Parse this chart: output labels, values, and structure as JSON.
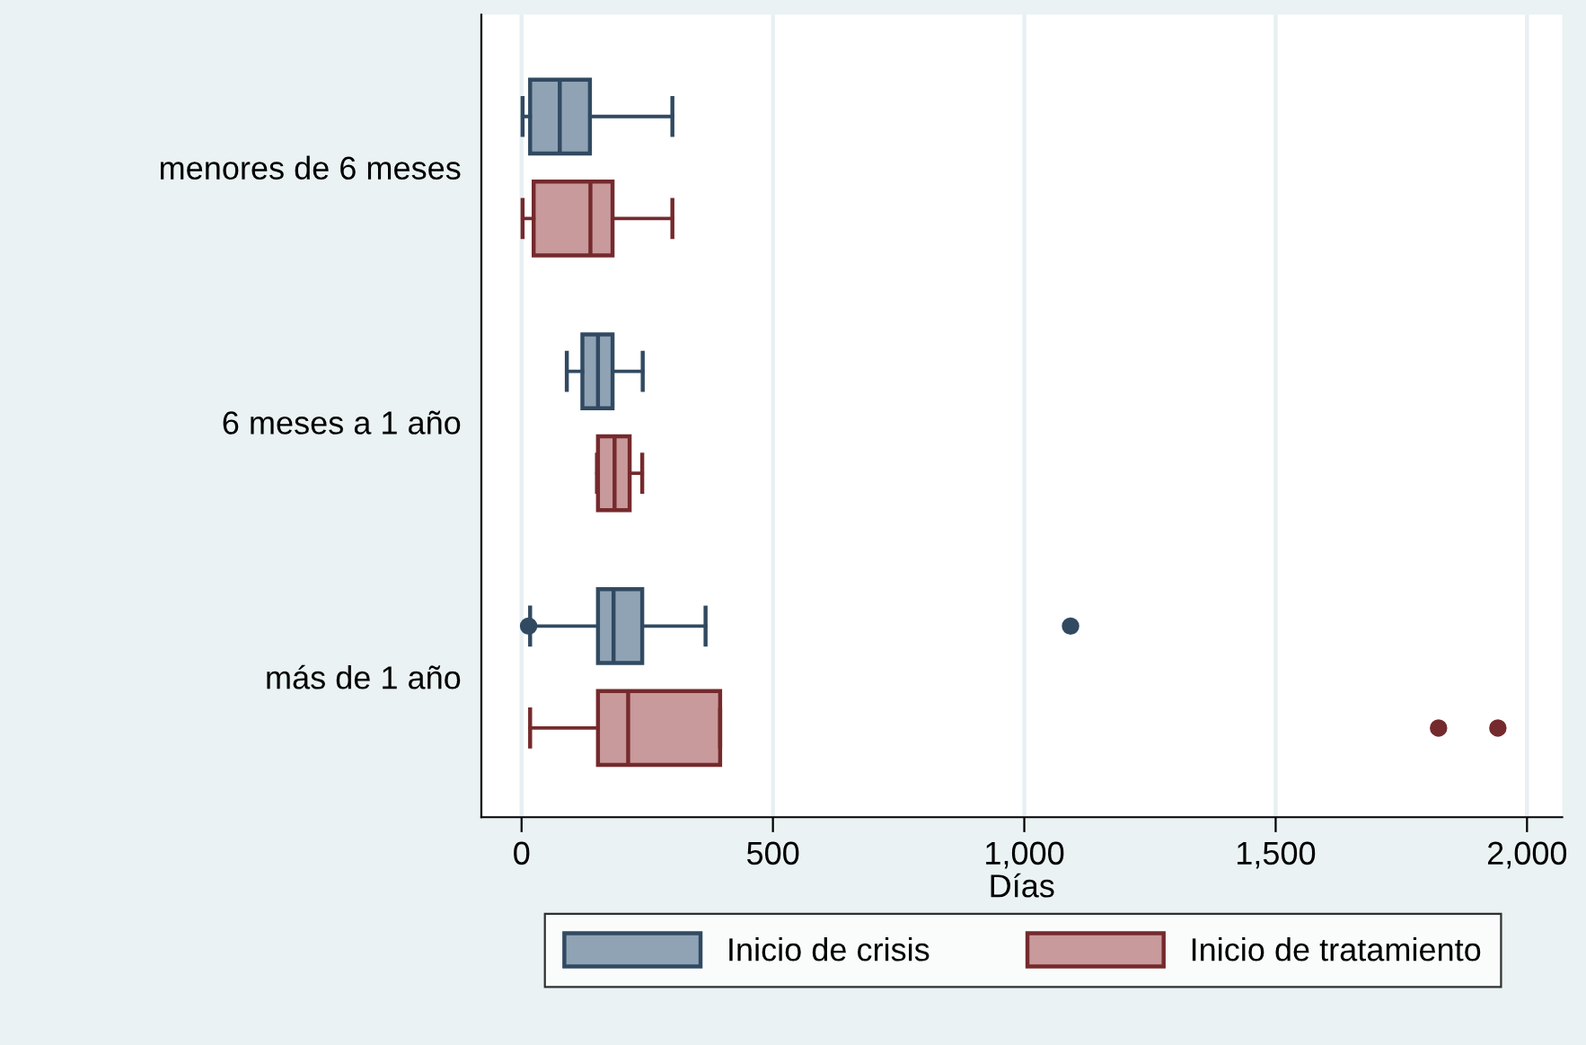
{
  "chart_data": {
    "type": "box",
    "orientation": "horizontal",
    "xlabel": "Días",
    "categories": [
      "menores de 6 meses",
      "6 meses a 1 año",
      "más de 1 año"
    ],
    "series": [
      {
        "name": "Inicio de crisis",
        "color": "#8fa3b5",
        "boxes": [
          {
            "low": 2,
            "q1": 17,
            "median": 76,
            "q3": 136,
            "high": 300
          },
          {
            "low": 90,
            "q1": 121,
            "median": 152,
            "q3": 181,
            "high": 241
          },
          {
            "low": 17,
            "q1": 152,
            "median": 183,
            "q3": 240,
            "high": 366,
            "outliers": [
              14,
              1092
            ]
          }
        ]
      },
      {
        "name": "Inicio de tratamiento",
        "color": "#c89a9c",
        "boxes": [
          {
            "low": 2,
            "q1": 24,
            "median": 137,
            "q3": 181,
            "high": 300
          },
          {
            "low": 150,
            "q1": 152,
            "median": 185,
            "q3": 215,
            "high": 240
          },
          {
            "low": 17,
            "q1": 152,
            "median": 212,
            "q3": 395,
            "high": 395,
            "outliers": [
              1824,
              1942
            ]
          }
        ]
      }
    ],
    "xlim": [
      -80,
      2070
    ],
    "xticks": [
      0,
      {
        "value": 500,
        "label": "500"
      },
      {
        "value": 1000,
        "label": "1,000"
      },
      {
        "value": 1500,
        "label": "1,500"
      },
      {
        "value": 2000,
        "label": "2,000"
      }
    ],
    "grid": "x",
    "legend": "bottom"
  }
}
